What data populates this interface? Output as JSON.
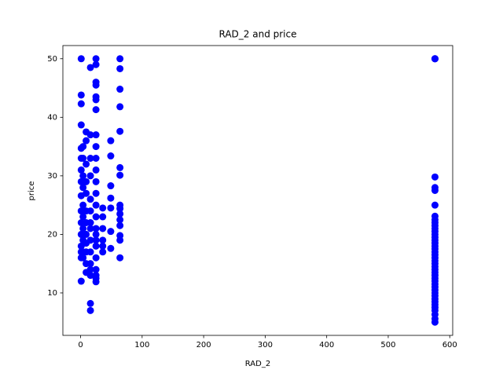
{
  "chart_data": {
    "type": "scatter",
    "title": "RAD_2 and price",
    "x_label": "RAD_2",
    "y_label": "price",
    "color": "#0000ff",
    "x": [
      1,
      1,
      1,
      1,
      1,
      1,
      1,
      1,
      1,
      1,
      1,
      1,
      1,
      1,
      1,
      1,
      4,
      4,
      4,
      4,
      4,
      4,
      4,
      4,
      4,
      4,
      9,
      9,
      9,
      9,
      9,
      9,
      9,
      9,
      9,
      9,
      9,
      9,
      16,
      16,
      16,
      16,
      16,
      16,
      16,
      16,
      16,
      16,
      16,
      16,
      16,
      16,
      16,
      25,
      25,
      25,
      25,
      25,
      25,
      25,
      25,
      25,
      25,
      25,
      25,
      25,
      25,
      25,
      25,
      25,
      25,
      25,
      25,
      25,
      25,
      25,
      25,
      36,
      36,
      36,
      36,
      36,
      36,
      49,
      49,
      49,
      49,
      49,
      49,
      49,
      64,
      64,
      64,
      64,
      64,
      64,
      64,
      64,
      64,
      64,
      64,
      64,
      64,
      64,
      64,
      576,
      576,
      576,
      576,
      576,
      576,
      576,
      576,
      576,
      576,
      576,
      576,
      576,
      576,
      576,
      576,
      576,
      576,
      576,
      576,
      576,
      576,
      576,
      576,
      576,
      576,
      576,
      576,
      576,
      576,
      576,
      576,
      576,
      576,
      576,
      576,
      576,
      576,
      576,
      576,
      576,
      576,
      576
    ],
    "values": [
      50,
      43.8,
      42.3,
      38.7,
      34.7,
      33,
      31,
      29,
      26.6,
      24,
      22,
      20,
      18,
      17,
      16,
      12,
      35,
      33,
      30,
      28,
      25,
      23,
      21,
      19,
      17,
      16,
      37.5,
      36,
      32,
      29,
      27,
      24,
      22,
      20,
      18.5,
      17,
      15,
      13.5,
      48.5,
      37,
      33,
      30,
      26,
      24,
      22,
      21,
      19,
      17,
      15,
      14,
      13,
      8.2,
      7,
      50,
      49,
      46,
      45.5,
      43.5,
      43,
      41.3,
      37,
      35,
      33,
      31,
      29,
      27,
      25,
      23,
      21,
      20,
      19,
      18,
      16,
      14,
      13,
      12.5,
      11.9,
      24.5,
      23,
      21,
      19,
      18,
      17,
      36,
      33.4,
      28.3,
      26.2,
      24.5,
      20.5,
      17.6,
      50,
      48.3,
      44.8,
      41.8,
      37.6,
      31.4,
      30.1,
      25,
      24.4,
      23.5,
      22.5,
      21.5,
      19.8,
      19,
      16,
      50,
      50,
      50,
      29.8,
      28,
      27.5,
      25,
      23.1,
      22.5,
      22,
      21.5,
      21,
      20.5,
      20,
      19.5,
      19,
      18.5,
      18,
      17.5,
      17,
      16.5,
      16,
      15.5,
      15,
      14.5,
      14,
      13.5,
      13,
      12.5,
      12,
      11.5,
      11,
      10.5,
      10,
      9.5,
      9,
      8.5,
      8,
      7.5,
      7,
      6.3,
      5.6,
      5
    ],
    "xlim": [
      -28.8,
      604.8
    ],
    "xticks": [
      0,
      100,
      200,
      300,
      400,
      500,
      600
    ],
    "ylim": [
      2.75,
      52.25
    ],
    "yticks": [
      10,
      20,
      30,
      40,
      50
    ],
    "grid": false
  }
}
